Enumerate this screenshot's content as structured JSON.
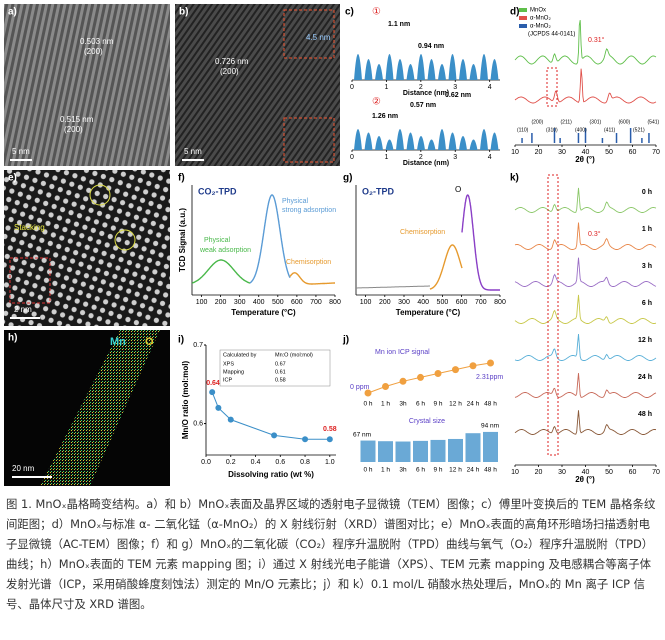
{
  "figure": {
    "a": {
      "label": "a)",
      "texts": [
        "0.503 nm",
        "(200)",
        "0.515 nm",
        "(200)",
        "5 nm"
      ]
    },
    "b": {
      "label": "b)",
      "texts": [
        "0.726 nm",
        "(200)",
        "4.5 nm",
        "5 nm"
      ]
    },
    "c": {
      "label": "c)",
      "marker1": "①",
      "spacings1": [
        "1.1 nm",
        "0.94 nm"
      ],
      "marker2": "②",
      "spacings2": [
        "1.26 nm",
        "0.57 nm",
        "0.62 nm"
      ],
      "xlabel": "Distance (nm)",
      "xlim": [
        0,
        4.3
      ],
      "xticks": [
        0,
        1,
        2,
        3,
        4
      ]
    },
    "d": {
      "label": "d)",
      "legend": [
        "MnOx",
        "α-MnO₂",
        "α-MnO₂",
        "(JCPDS 44-0141)"
      ],
      "shift": "0.31°",
      "peaks": [
        "(110)",
        "(200)",
        "(310)",
        "(211)",
        "(400)",
        "(301)",
        "(411)",
        "(600)",
        "(521)",
        "(541)"
      ],
      "xlabel": "2θ (°)",
      "xlim": [
        10,
        70
      ],
      "xticks": [
        10,
        20,
        30,
        40,
        50,
        60,
        70
      ]
    },
    "e": {
      "label": "e)",
      "texts": [
        "Stacking",
        "2 nm"
      ]
    },
    "f": {
      "label": "f)",
      "title": "CO₂-TPD",
      "ylabel": "TCD Signal (a.u.)",
      "xlabel": "Temperature (°C)",
      "annotations": [
        "Physical",
        "weak adsorption",
        "Physical",
        "strong adsorption",
        "Chemisorption"
      ],
      "xlim": [
        50,
        800
      ],
      "xticks": [
        100,
        200,
        300,
        400,
        500,
        600,
        700,
        800
      ]
    },
    "g": {
      "label": "g)",
      "title": "O₂-TPD",
      "peak": "O",
      "annotations": [
        "Chemisorption"
      ],
      "xlabel": "Temperature (°C)",
      "xlim": [
        50,
        800
      ],
      "xticks": [
        100,
        200,
        300,
        400,
        500,
        600,
        700,
        800
      ]
    },
    "h": {
      "label": "h)",
      "elements": [
        "Mn",
        "O"
      ],
      "scale": "20 nm"
    },
    "i": {
      "label": "i)",
      "ylabel": "Mn/O ratio (mol:mol)",
      "xlabel": "Dissolving ratio (wt %)",
      "x": [
        0.05,
        0.1,
        0.2,
        0.55,
        0.8,
        1.0
      ],
      "values": [
        0.64,
        0.62,
        0.605,
        0.585,
        0.58,
        0.58
      ],
      "xlim": [
        0,
        1.05
      ],
      "ylim": [
        0.56,
        0.7
      ],
      "xticks": [
        {
          "value": 0,
          "label": "0.0"
        },
        0.2,
        0.4,
        0.6,
        0.8,
        {
          "value": 1,
          "label": "1.0"
        }
      ],
      "yticks": [
        0.6,
        0.7
      ],
      "table": {
        "header": [
          "Calculated by",
          "Mn:O (mol:mol)"
        ],
        "rows": [
          [
            "XPS",
            "0.67"
          ],
          [
            "Mapping",
            "0.61"
          ],
          [
            "ICP",
            "0.58"
          ]
        ]
      }
    },
    "j": {
      "label": "j)",
      "categories": [
        "0 h",
        "1 h",
        "3h",
        "6 h",
        "9 h",
        "12 h",
        "24 h",
        "48 h"
      ],
      "icp": {
        "title": "Mn ion ICP signal",
        "values": [
          0,
          0.5,
          0.9,
          1.2,
          1.5,
          1.8,
          2.1,
          2.31
        ],
        "value_labels": [
          "0 ppm",
          null,
          null,
          null,
          null,
          null,
          null,
          "2.31ppm"
        ]
      },
      "crystal": {
        "title": "Crystal size",
        "values": [
          67,
          65,
          64,
          66,
          69,
          72,
          90,
          94
        ],
        "value_labels": [
          "67 nm",
          null,
          null,
          null,
          null,
          null,
          null,
          "94 nm"
        ]
      }
    },
    "k": {
      "label": "k)",
      "shift": "0.3°",
      "times": [
        "0 h",
        "1 h",
        "3 h",
        "6 h",
        "12 h",
        "24 h",
        "48 h"
      ],
      "xlabel": "2θ (°)",
      "xlim": [
        10,
        70
      ],
      "xticks": [
        10,
        20,
        30,
        40,
        50,
        60,
        70
      ]
    }
  },
  "caption": "图 1. MnOₓ晶格畸变结构。a）和 b）MnOₓ表面及晶界区域的透射电子显微镜（TEM）图像；c）傅里叶变换后的 TEM 晶格条纹间距图；d）MnOₓ与标准 α- 二氧化锰（α-MnO₂）的 X 射线衍射（XRD）谱图对比；e）MnOₓ表面的高角环形暗场扫描透射电子显微镜（AC-TEM）图像；f）和 g）MnOₓ的二氧化碳（CO₂）程序升温脱附（TPD）曲线与氧气（O₂）程序升温脱附（TPD）曲线；h）MnOₓ表面的 TEM 元素 mapping 图；i）通过 X 射线光电子能谱（XPS）、TEM 元素 mapping 及电感耦合等离子体发射光谱（ICP，采用硝酸蜂度刻蚀法）测定的 Mn/O 元素比；j）和 k）0.1 mol/L 硝酸水热处理后，MnOₓ的 Mn 离子 ICP 信号、晶体尺寸及 XRD 谱图。"
}
